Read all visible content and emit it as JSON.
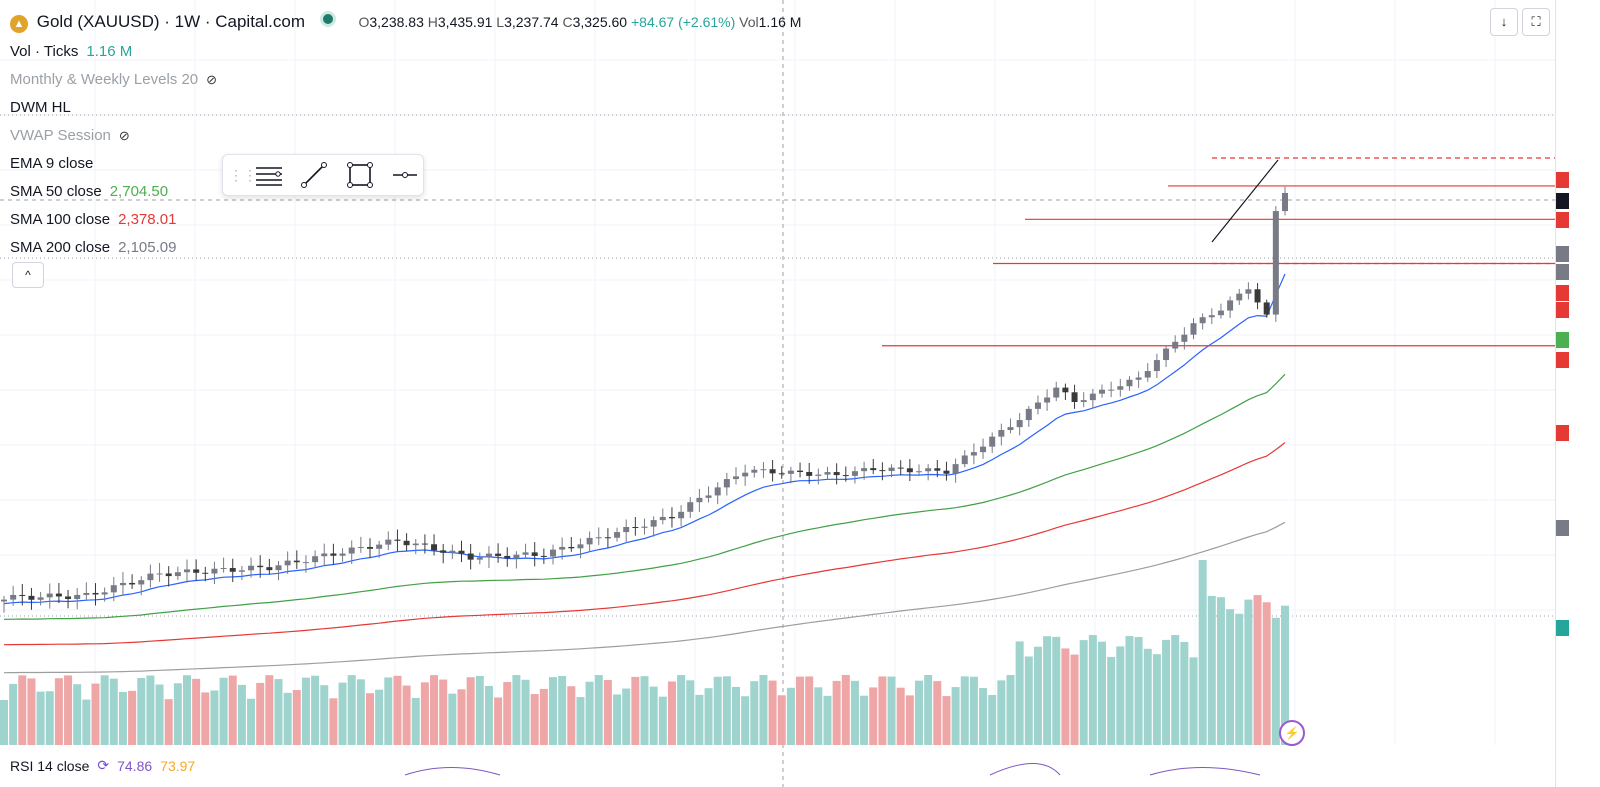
{
  "header": {
    "symbol_title": "Gold (XAUUSD) · 1W · Capital.com",
    "open_label": "O",
    "open": "3,238.83",
    "high_label": "H",
    "high": "3,435.91",
    "low_label": "L",
    "low": "3,237.74",
    "close_label": "C",
    "close": "3,325.60",
    "change": "+84.67 (+2.61%)",
    "vol_label": "Vol",
    "vol": "1.16 M"
  },
  "indicators": [
    {
      "name": "Vol · Ticks",
      "value": "1.16 M",
      "color": "#26a69a",
      "hidden": false
    },
    {
      "name": "Monthly & Weekly Levels 20",
      "value": "",
      "color": "#9aa0a6",
      "hidden": true
    },
    {
      "name": "DWM HL",
      "value": "",
      "color": "#131722",
      "hidden": false
    },
    {
      "name": "VWAP Session",
      "value": "",
      "color": "#9aa0a6",
      "hidden": true
    },
    {
      "name": "EMA 9 close",
      "value": "",
      "color": "#131722",
      "hidden": false
    },
    {
      "name": "SMA 50 close",
      "value": "2,704.50",
      "color": "#4caf50",
      "hidden": false
    },
    {
      "name": "SMA 100 close",
      "value": "2,378.01",
      "color": "#e53935",
      "hidden": false
    },
    {
      "name": "SMA 200 close",
      "value": "2,105.09",
      "color": "#787b86",
      "hidden": false
    }
  ],
  "rsi": {
    "label": "RSI 14 close",
    "value1": "74.86",
    "value2": "73.97"
  },
  "toolbar": {
    "tools": [
      "horizontal-lines-icon",
      "trend-line-icon",
      "rectangle-icon",
      "horizontal-ray-icon"
    ]
  },
  "colors": {
    "up": "#787b86",
    "down": "#3a3a3a",
    "vol_up": "#9fd3cd",
    "vol_down": "#eea6a6",
    "ema": "#2962ff",
    "sma50": "#43a047",
    "sma100": "#e53935",
    "sma200": "#9e9e9e",
    "level": "#e53935"
  },
  "chart_data": {
    "type": "candlestick",
    "interval": "1W",
    "symbol": "XAUUSD",
    "last_candle": {
      "open": 3238.83,
      "high": 3435.91,
      "low": 3237.74,
      "close": 3325.6
    },
    "series": [
      {
        "name": "SMA 50 close",
        "last": 2704.5
      },
      {
        "name": "SMA 100 close",
        "last": 2378.01
      },
      {
        "name": "SMA 200 close",
        "last": 2105.09
      }
    ],
    "horizontal_levels": [
      3500,
      3360,
      3200,
      3000,
      2660
    ],
    "volume_last": 1160000
  }
}
